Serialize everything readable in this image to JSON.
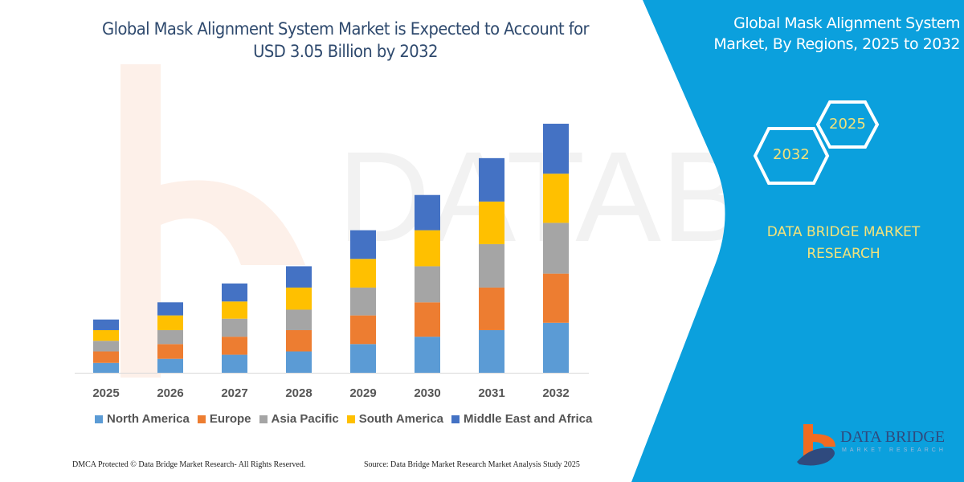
{
  "title": "Global Mask Alignment System Market is Expected to Account for USD 3.05 Billion by 2032",
  "side_panel": {
    "title": "Global Mask Alignment System Market, By Regions, 2025 to 2032",
    "hex_start": "2025",
    "hex_end": "2032",
    "brand": "DATA BRIDGE MARKET RESEARCH",
    "logo_text": "DATA BRIDGE",
    "logo_subtext": "MARKET RESEARCH",
    "color": "#0BA0DD"
  },
  "footer": {
    "left": "DMCA Protected © Data Bridge Market Research-  All Rights Reserved.",
    "right": "Source: Data Bridge Market Research  Market Analysis Study 2025"
  },
  "chart_data": {
    "type": "bar",
    "stacked": true,
    "title": "Global Mask Alignment System Market is Expected to Account for USD 3.05 Billion by 2032",
    "xlabel": "",
    "ylabel": "",
    "unit": "USD Billion (estimated)",
    "grid": false,
    "legend": "bottom",
    "categories": [
      "2025",
      "2026",
      "2027",
      "2028",
      "2029",
      "2030",
      "2031",
      "2032"
    ],
    "series": [
      {
        "name": "North America",
        "color": "#5B9BD5",
        "values": [
          0.12,
          0.17,
          0.22,
          0.26,
          0.35,
          0.44,
          0.52,
          0.61
        ]
      },
      {
        "name": "Europe",
        "color": "#ED7D31",
        "values": [
          0.14,
          0.18,
          0.22,
          0.26,
          0.35,
          0.42,
          0.52,
          0.6
        ]
      },
      {
        "name": "Asia Pacific",
        "color": "#A5A5A5",
        "values": [
          0.13,
          0.17,
          0.22,
          0.25,
          0.34,
          0.44,
          0.53,
          0.62
        ]
      },
      {
        "name": "South America",
        "color": "#FFC000",
        "values": [
          0.13,
          0.18,
          0.21,
          0.27,
          0.35,
          0.44,
          0.52,
          0.6
        ]
      },
      {
        "name": "Middle East and Africa",
        "color": "#4472C4",
        "values": [
          0.13,
          0.16,
          0.22,
          0.26,
          0.35,
          0.43,
          0.53,
          0.61
        ]
      }
    ]
  }
}
